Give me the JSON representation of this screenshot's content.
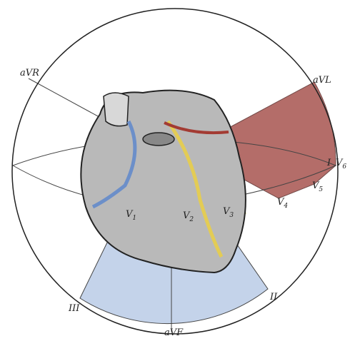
{
  "labels": [
    {
      "text": "aVR"
    },
    {
      "text": "aVL"
    },
    {
      "text": "I"
    },
    {
      "text": "V",
      "sub": "6"
    },
    {
      "text": "V",
      "sub": "5"
    },
    {
      "text": "V",
      "sub": "4"
    },
    {
      "text": "V",
      "sub": "1"
    },
    {
      "text": "V",
      "sub": "2"
    },
    {
      "text": "V",
      "sub": "3"
    },
    {
      "text": "II"
    },
    {
      "text": "III"
    },
    {
      "text": "aVF"
    }
  ]
}
